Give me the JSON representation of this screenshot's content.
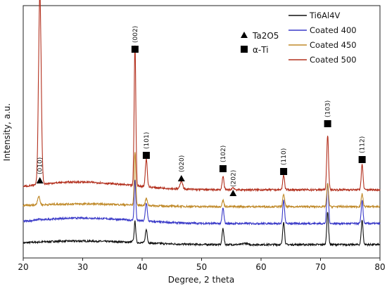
{
  "chart_data": {
    "type": "line",
    "xlabel": "Degree, 2 theta",
    "ylabel": "Intensity, a.u.",
    "xlim": [
      20,
      80
    ],
    "xticks": [
      "20",
      "30",
      "40",
      "50",
      "60",
      "70",
      "80"
    ],
    "grid": false,
    "y_tick_labels": false,
    "legend_placement": "top-right",
    "series": [
      {
        "name": "Ti6Al4V",
        "color": "#111111",
        "baseline": 9,
        "broad": [
          [
            26,
            4
          ],
          [
            36,
            3
          ]
        ],
        "peaks": [
          [
            38.4,
            1.5,
            0.15
          ],
          [
            38.8,
            30,
            0.13
          ],
          [
            40.7,
            19,
            0.16
          ],
          [
            53.6,
            23,
            0.15
          ],
          [
            57.3,
            2,
            0.3
          ],
          [
            63.8,
            33,
            0.15
          ],
          [
            71.2,
            46,
            0.15
          ],
          [
            77.0,
            35,
            0.15
          ]
        ]
      },
      {
        "name": "Coated 400",
        "color": "#3a3ac8",
        "baseline": 39,
        "broad": [
          [
            27,
            6
          ],
          [
            36,
            4
          ]
        ],
        "peaks": [
          [
            22.6,
            1.5,
            0.2
          ],
          [
            38.8,
            58,
            0.13
          ],
          [
            40.7,
            26,
            0.16
          ],
          [
            53.6,
            22,
            0.15
          ],
          [
            63.8,
            33,
            0.15
          ],
          [
            71.2,
            58,
            0.15
          ],
          [
            77.0,
            33,
            0.15
          ]
        ]
      },
      {
        "name": "Coated 450",
        "color": "#c08a2a",
        "baseline": 63,
        "broad": [
          [
            27,
            3
          ],
          [
            36,
            2
          ]
        ],
        "peaks": [
          [
            22.6,
            12,
            0.2
          ],
          [
            38.8,
            76,
            0.13
          ],
          [
            40.7,
            10,
            0.16
          ],
          [
            53.6,
            9,
            0.15
          ],
          [
            63.8,
            18,
            0.15
          ],
          [
            71.2,
            33,
            0.15
          ],
          [
            77.0,
            18,
            0.15
          ]
        ]
      },
      {
        "name": "Coated 500",
        "color": "#b3301e",
        "baseline": 87,
        "broad": [
          [
            27,
            9
          ],
          [
            36,
            5
          ]
        ],
        "peaks": [
          [
            22.8,
            272,
            0.22
          ],
          [
            38.8,
            200,
            0.14
          ],
          [
            40.7,
            40,
            0.16
          ],
          [
            46.6,
            12,
            0.2
          ],
          [
            53.6,
            19,
            0.15
          ],
          [
            55.3,
            3,
            0.2
          ],
          [
            63.8,
            21,
            0.15
          ],
          [
            71.2,
            78,
            0.15
          ],
          [
            77.0,
            36,
            0.15
          ]
        ]
      }
    ],
    "annotations": [
      {
        "label": "(010)",
        "x": 22.8,
        "marker": "triangle",
        "y_level": 100
      },
      {
        "label": "(002)",
        "x": 38.8,
        "marker": "square",
        "y_level": 287
      },
      {
        "label": "(101)",
        "x": 40.7,
        "marker": "square",
        "y_level": 136
      },
      {
        "label": "(020)",
        "x": 46.6,
        "marker": "triangle",
        "y_level": 103
      },
      {
        "label": "(102)",
        "x": 53.6,
        "marker": "square",
        "y_level": 117
      },
      {
        "label": "(202)",
        "x": 55.3,
        "marker": "triangle",
        "y_level": 82
      },
      {
        "label": "(110)",
        "x": 63.8,
        "marker": "square",
        "y_level": 113
      },
      {
        "label": "(103)",
        "x": 71.2,
        "marker": "square",
        "y_level": 181
      },
      {
        "label": "(112)",
        "x": 77.0,
        "marker": "square",
        "y_level": 130
      }
    ],
    "marker_legend": [
      {
        "marker": "triangle",
        "label": "Ta2O5"
      },
      {
        "marker": "square",
        "label": "α-Ti"
      }
    ]
  }
}
